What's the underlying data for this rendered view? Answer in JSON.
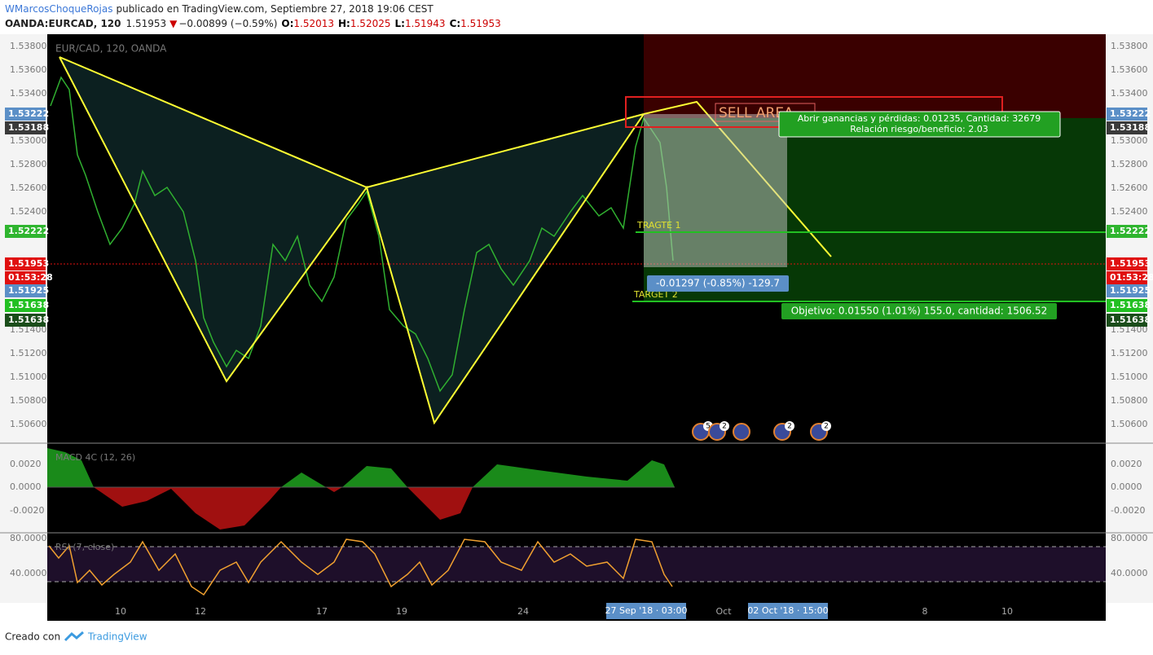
{
  "header": {
    "author": "WMarcosChoqueRojas",
    "published": "publicado en TradingView.com, Septiembre 27, 2018 19:06 CEST",
    "symbol": "OANDA:EURCAD, 120",
    "last": "1.51953",
    "change": "−0.00899 (−0.59%)",
    "o_label": "O:",
    "o": "1.52013",
    "h_label": "H:",
    "h": "1.52025",
    "l_label": "L:",
    "l": "1.51943",
    "c_label": "C:",
    "c": "1.51953"
  },
  "main": {
    "legend": "EUR/CAD, 120, OANDA",
    "price_labels": [
      "1.53800",
      "1.53600",
      "1.53400",
      "1.53000",
      "1.52800",
      "1.52600",
      "1.52400",
      "1.51400",
      "1.51200",
      "1.51000",
      "1.50800",
      "1.50600"
    ],
    "badges": [
      {
        "text": "1.53222",
        "color": "#5b8fc7"
      },
      {
        "text": "1.53188",
        "color": "#3a3a3a"
      },
      {
        "text": "1.52222",
        "color": "#2fb52f"
      },
      {
        "text": "1.51953",
        "color": "#e01010"
      },
      {
        "text": "01:53:28",
        "color": "#e01010"
      },
      {
        "text": "1.51925",
        "color": "#5b8fc7"
      },
      {
        "text": "1.51638",
        "color": "#22c022"
      },
      {
        "text": "1.51638",
        "color": "#1a4d1a"
      }
    ],
    "annotations": {
      "sell_area": "SELL  AREA",
      "target1": "TRAGTE 1",
      "target2": "TARGET 2",
      "pnl": "Abrir ganancias y pérdidas: 0.01235, Cantidad: 32679",
      "ratio": "Relación riesgo/beneficio: 2.03",
      "current": "-0.01297 (-0.85%) -129.7",
      "target": "Objetivo: 0.01550 (1.01%) 155.0, cantidad: 1506.52"
    },
    "event_counts": [
      "5",
      "2",
      "2",
      "2"
    ]
  },
  "macd": {
    "legend": "MACD 4C (12, 26)",
    "labels": [
      "0.0020",
      "0.0000",
      "-0.0020"
    ]
  },
  "rsi": {
    "legend": "RSI (7, close)",
    "labels": [
      "80.0000",
      "40.0000"
    ]
  },
  "time_axis": {
    "labels": [
      "10",
      "12",
      "17",
      "19",
      "24",
      "Oct",
      "8",
      "10"
    ],
    "cursor_start": "27 Sep '18 · 03:00",
    "cursor_end": "02 Oct '18 · 15:00"
  },
  "footer": {
    "created": "Creado con",
    "brand": "TradingView"
  }
}
